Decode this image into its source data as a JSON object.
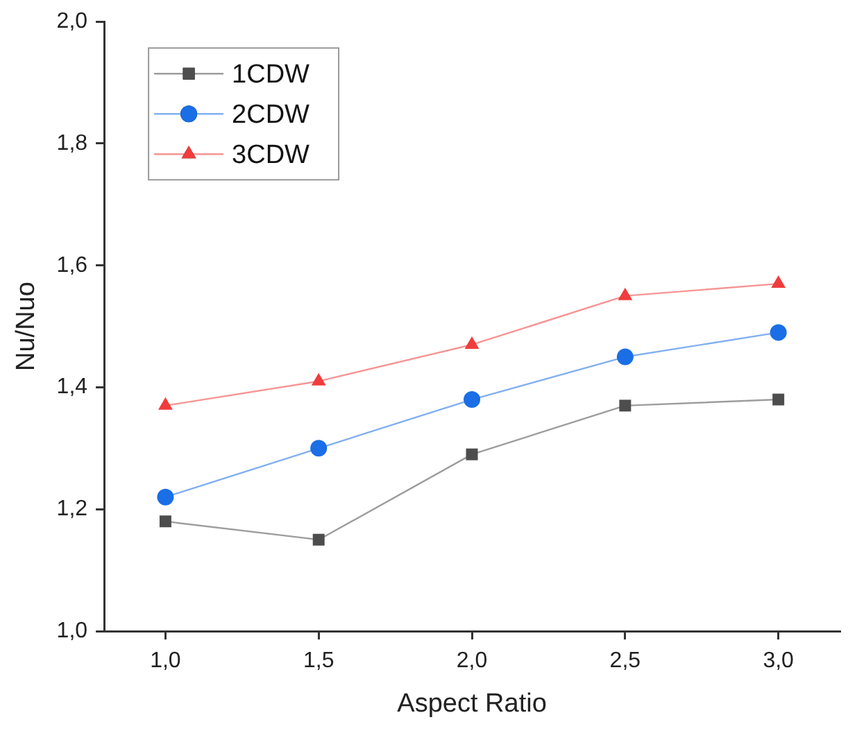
{
  "chart_data": {
    "type": "line",
    "xlabel": "Aspect Ratio",
    "ylabel": "Nu/Nuo",
    "x": [
      1.0,
      1.5,
      2.0,
      2.5,
      3.0
    ],
    "series": [
      {
        "name": "1CDW",
        "color": "#4d4d4d",
        "marker": "square",
        "values": [
          1.18,
          1.15,
          1.29,
          1.37,
          1.38
        ]
      },
      {
        "name": "2CDW",
        "color": "#1a6ee6",
        "marker": "circle",
        "values": [
          1.22,
          1.3,
          1.38,
          1.45,
          1.49
        ]
      },
      {
        "name": "3CDW",
        "color": "#f03c3c",
        "marker": "triangle",
        "values": [
          1.37,
          1.41,
          1.47,
          1.55,
          1.57
        ]
      }
    ],
    "xlim": [
      0.8,
      3.2
    ],
    "xticks": [
      {
        "value": 1.0,
        "label": "1,0"
      },
      {
        "value": 1.5,
        "label": "1,5"
      },
      {
        "value": 2.0,
        "label": "2,0"
      },
      {
        "value": 2.5,
        "label": "2,5"
      },
      {
        "value": 3.0,
        "label": "3,0"
      }
    ],
    "ylim": [
      1.0,
      2.0
    ],
    "yticks": [
      {
        "value": 1.0,
        "label": "1,0"
      },
      {
        "value": 1.2,
        "label": "1,2"
      },
      {
        "value": 1.4,
        "label": "1,4"
      },
      {
        "value": 1.6,
        "label": "1,6"
      },
      {
        "value": 1.8,
        "label": "1,8"
      },
      {
        "value": 2.0,
        "label": "2,0"
      }
    ],
    "grid": false,
    "legend": "top left",
    "line_style": "solid"
  }
}
